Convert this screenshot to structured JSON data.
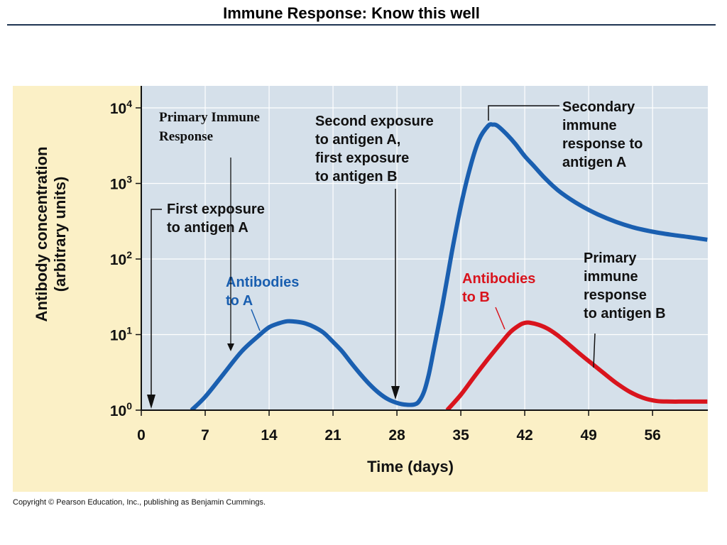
{
  "slide": {
    "title": "Immune Response:  Know this well",
    "copyright": "Copyright © Pearson Education, Inc., publishing as Benjamin Cummings."
  },
  "colors": {
    "panel_bg": "#fbf0c6",
    "plot_bg": "#d5e0ea",
    "series_a": "#1a5fb0",
    "series_b": "#d9141d",
    "title_rule": "#1f3552"
  },
  "chart_data": {
    "type": "line",
    "title": "",
    "xlabel": "Time (days)",
    "ylabel_lines": [
      "Antibody concentration",
      "(arbitrary units)"
    ],
    "y_scale": "log",
    "x_ticks": [
      "0",
      "7",
      "14",
      "21",
      "28",
      "35",
      "42",
      "49",
      "56"
    ],
    "x_tick_values": [
      0,
      7,
      14,
      21,
      28,
      35,
      42,
      49,
      56
    ],
    "y_tick_labels": [
      {
        "base": "10",
        "exp": "4",
        "value": 10000
      },
      {
        "base": "10",
        "exp": "3",
        "value": 1000
      },
      {
        "base": "10",
        "exp": "2",
        "value": 100
      },
      {
        "base": "10",
        "exp": "1",
        "value": 10
      },
      {
        "base": "10",
        "exp": "0",
        "value": 1
      }
    ],
    "xlim": [
      0,
      62
    ],
    "ylim": [
      1,
      13000
    ],
    "grid": true,
    "series": [
      {
        "name": "Antibodies to A",
        "label_lines": [
          "Antibodies",
          "to A"
        ],
        "x": [
          5.5,
          7,
          9,
          11,
          13,
          14,
          15,
          16,
          17,
          18,
          19,
          20,
          21,
          22,
          23,
          24,
          25,
          26,
          27,
          28,
          29,
          30,
          30.5,
          31,
          31.5,
          32,
          33,
          34,
          35,
          36,
          37,
          38,
          38.5,
          39,
          40,
          41,
          42,
          43,
          44,
          45,
          46,
          48,
          50,
          52,
          54,
          56,
          58,
          60,
          62
        ],
        "y": [
          1,
          1.5,
          3,
          6,
          10,
          12.5,
          14,
          15,
          14.8,
          14,
          12.5,
          10.5,
          8,
          6,
          4.2,
          3,
          2.2,
          1.7,
          1.4,
          1.25,
          1.18,
          1.2,
          1.35,
          1.8,
          3,
          6,
          25,
          120,
          500,
          1600,
          3800,
          5800,
          6000,
          5800,
          4500,
          3300,
          2300,
          1700,
          1250,
          950,
          750,
          520,
          390,
          310,
          260,
          230,
          210,
          195,
          180
        ]
      },
      {
        "name": "Antibodies to B",
        "label_lines": [
          "Antibodies",
          "to B"
        ],
        "x": [
          33.5,
          35,
          36.5,
          38,
          39.5,
          40.5,
          41.5,
          42,
          42.5,
          43.5,
          44.5,
          45.5,
          46.5,
          47.5,
          48.5,
          49.5,
          50.5,
          52,
          53.5,
          55,
          56.5,
          58,
          59.5,
          62
        ],
        "y": [
          1,
          1.6,
          2.8,
          4.8,
          8,
          11,
          13.5,
          14.3,
          14.4,
          13.5,
          12,
          10,
          8,
          6.3,
          5,
          4,
          3.2,
          2.3,
          1.75,
          1.45,
          1.32,
          1.3,
          1.3,
          1.3
        ]
      }
    ],
    "annotations": [
      {
        "name": "primary-immune-response",
        "lines": [
          "Primary Immune",
          "Response"
        ],
        "x": 10,
        "y": 4500
      },
      {
        "name": "first-exposure-a",
        "lines": [
          "First exposure",
          "to antigen A"
        ],
        "x": 1,
        "y": 1
      },
      {
        "name": "second-exposure",
        "lines": [
          "Second exposure",
          "to antigen A,",
          "first exposure",
          "to antigen B"
        ],
        "x": 28,
        "y": 1.2
      },
      {
        "name": "secondary-response-a",
        "lines": [
          "Secondary",
          "immune",
          "response to",
          "antigen A"
        ],
        "x": 38.5,
        "y": 6000
      },
      {
        "name": "primary-response-b",
        "lines": [
          "Primary",
          "immune",
          "response",
          "to antigen B"
        ],
        "x": 49.5,
        "y": 4
      }
    ]
  }
}
